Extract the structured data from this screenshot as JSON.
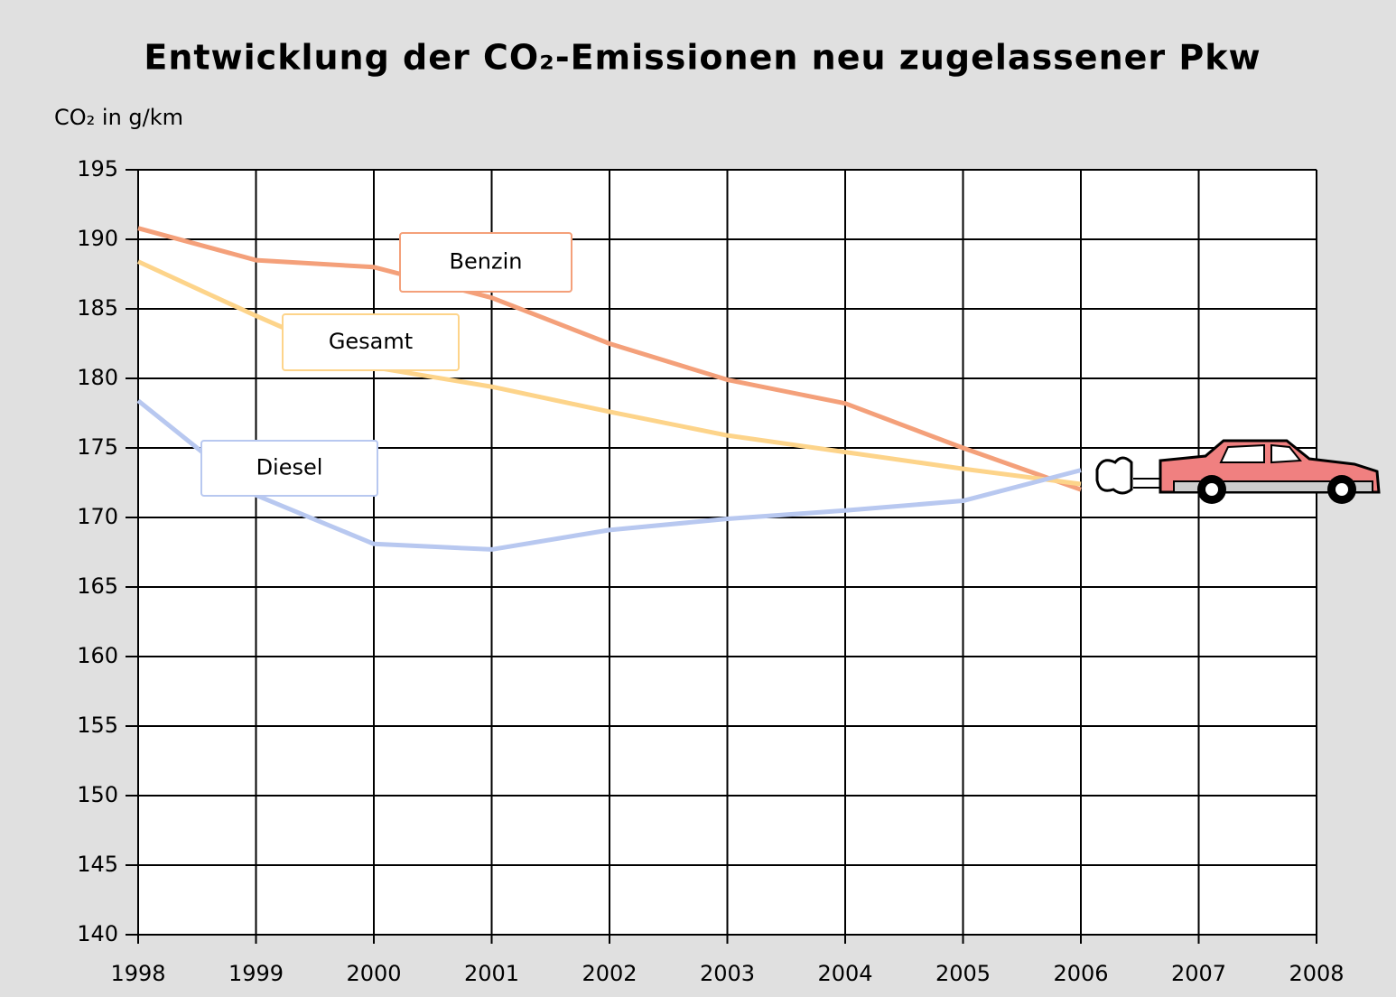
{
  "chart_data": {
    "type": "line",
    "title": "Entwicklung der CO₂-Emissionen neu zugelassener Pkw",
    "y_label": "CO₂ in g/km",
    "x": [
      1998,
      1999,
      2000,
      2001,
      2002,
      2003,
      2004,
      2005,
      2006
    ],
    "series": [
      {
        "name": "Benzin",
        "color": "#f4a07a",
        "values": [
          190.8,
          188.5,
          188.0,
          185.8,
          182.5,
          179.9,
          178.2,
          175.0,
          172.0
        ]
      },
      {
        "name": "Gesamt",
        "color": "#fdd48a",
        "values": [
          188.4,
          184.5,
          180.8,
          179.4,
          177.6,
          175.9,
          174.7,
          173.5,
          172.4
        ]
      },
      {
        "name": "Diesel",
        "color": "#b8c8f0",
        "values": [
          178.4,
          171.6,
          168.1,
          167.7,
          169.1,
          169.9,
          170.5,
          171.2,
          173.4
        ]
      }
    ],
    "xlim": [
      1998,
      2008
    ],
    "xticks": [
      1998,
      1999,
      2000,
      2001,
      2002,
      2003,
      2004,
      2005,
      2006,
      2007,
      2008
    ],
    "ylim": [
      140,
      195
    ],
    "yticks": [
      140,
      145,
      150,
      155,
      160,
      165,
      170,
      175,
      180,
      185,
      190,
      195
    ],
    "grid": true
  }
}
